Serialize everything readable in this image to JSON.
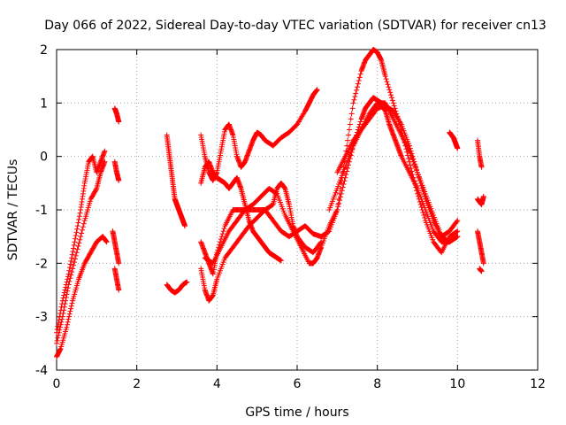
{
  "chart_data": {
    "type": "scatter",
    "title": "Day 066 of 2022, Sidereal Day-to-day VTEC variation (SDTVAR) for receiver cn13",
    "xlabel": "GPS time / hours",
    "ylabel": "SDTVAR / TECUs",
    "xlim": [
      0,
      12
    ],
    "ylim": [
      -4,
      2
    ],
    "x_ticks": [
      0,
      2,
      4,
      6,
      8,
      10,
      12
    ],
    "y_ticks": [
      -4,
      -3,
      -2,
      -1,
      0,
      1,
      2
    ],
    "x_tick_labels": [
      "0",
      "2",
      "4",
      "6",
      "8",
      "10",
      "12"
    ],
    "y_tick_labels": [
      "-4",
      "-3",
      "-2",
      "-1",
      "0",
      "1",
      "2"
    ],
    "grid": true,
    "marker": "+",
    "color": "#ff0000",
    "series": [
      {
        "x": [
          0.0,
          0.15,
          0.3,
          0.45,
          0.6,
          0.7,
          0.8,
          0.9,
          1.0,
          1.1,
          1.2
        ],
        "y": [
          -3.3,
          -2.7,
          -2.2,
          -1.6,
          -1.0,
          -0.5,
          -0.1,
          0.0,
          -0.3,
          -0.1,
          0.1
        ]
      },
      {
        "x": [
          0.0,
          0.15,
          0.3,
          0.5,
          0.7,
          0.85,
          1.0,
          1.1,
          1.2
        ],
        "y": [
          -3.5,
          -3.0,
          -2.4,
          -1.8,
          -1.2,
          -0.8,
          -0.6,
          -0.3,
          -0.1
        ]
      },
      {
        "x": [
          0.0,
          0.1,
          0.25,
          0.4,
          0.55,
          0.7,
          0.85,
          1.0,
          1.15,
          1.25
        ],
        "y": [
          -3.75,
          -3.6,
          -3.2,
          -2.7,
          -2.3,
          -2.0,
          -1.8,
          -1.6,
          -1.5,
          -1.6
        ]
      },
      {
        "x": [
          1.45,
          1.5,
          1.55
        ],
        "y": [
          0.9,
          0.8,
          0.65
        ]
      },
      {
        "x": [
          1.45,
          1.5,
          1.55
        ],
        "y": [
          -0.1,
          -0.3,
          -0.45
        ]
      },
      {
        "x": [
          1.4,
          1.45,
          1.5,
          1.55
        ],
        "y": [
          -1.4,
          -1.6,
          -1.8,
          -2.0
        ]
      },
      {
        "x": [
          1.45,
          1.5,
          1.55
        ],
        "y": [
          -2.1,
          -2.3,
          -2.5
        ]
      },
      {
        "x": [
          2.75,
          2.8,
          2.85,
          2.9,
          2.95,
          3.0,
          3.05,
          3.1,
          3.15,
          3.2
        ],
        "y": [
          0.4,
          0.1,
          -0.2,
          -0.5,
          -0.8,
          -0.9,
          -1.0,
          -1.1,
          -1.2,
          -1.3
        ]
      },
      {
        "x": [
          2.75,
          2.85,
          2.95,
          3.05,
          3.15,
          3.25
        ],
        "y": [
          -2.4,
          -2.5,
          -2.55,
          -2.5,
          -2.4,
          -2.35
        ]
      },
      {
        "x": [
          3.6,
          3.7,
          3.8,
          3.9,
          4.0,
          4.1,
          4.2,
          4.3,
          4.4,
          4.5,
          4.6,
          4.7,
          4.8,
          4.9,
          5.0,
          5.1,
          5.2,
          5.4,
          5.6,
          5.8,
          6.0,
          6.2,
          6.3,
          6.4,
          6.5
        ],
        "y": [
          0.4,
          0.0,
          -0.3,
          -0.45,
          -0.3,
          0.1,
          0.5,
          0.6,
          0.4,
          0.0,
          -0.2,
          -0.1,
          0.1,
          0.3,
          0.45,
          0.4,
          0.3,
          0.2,
          0.35,
          0.45,
          0.6,
          0.85,
          1.0,
          1.15,
          1.25
        ]
      },
      {
        "x": [
          3.6,
          3.7,
          3.8,
          3.9,
          4.0,
          4.1,
          4.2,
          4.3,
          4.4,
          4.5,
          4.6,
          4.7,
          4.8,
          4.9,
          5.0,
          5.1,
          5.2,
          5.3,
          5.4,
          5.5,
          5.6
        ],
        "y": [
          -0.5,
          -0.2,
          -0.1,
          -0.3,
          -0.4,
          -0.45,
          -0.5,
          -0.6,
          -0.5,
          -0.4,
          -0.6,
          -0.9,
          -1.2,
          -1.4,
          -1.5,
          -1.6,
          -1.7,
          -1.8,
          -1.85,
          -1.9,
          -1.95
        ]
      },
      {
        "x": [
          3.6,
          3.7,
          3.8,
          3.9,
          4.0,
          4.2,
          4.4,
          4.6,
          4.8,
          5.0,
          5.2,
          5.4,
          5.6,
          5.8,
          6.0,
          6.2,
          6.4,
          6.6
        ],
        "y": [
          -1.6,
          -1.8,
          -2.0,
          -2.2,
          -1.8,
          -1.3,
          -1.0,
          -1.0,
          -1.0,
          -1.0,
          -1.0,
          -1.2,
          -1.4,
          -1.5,
          -1.4,
          -1.3,
          -1.45,
          -1.5
        ]
      },
      {
        "x": [
          3.6,
          3.7,
          3.8,
          3.9,
          4.0,
          4.2,
          4.4,
          4.6,
          4.8,
          5.0,
          5.2,
          5.4,
          5.5,
          5.6,
          5.7,
          5.8,
          5.9,
          6.0,
          6.2,
          6.4,
          6.6
        ],
        "y": [
          -2.1,
          -2.5,
          -2.7,
          -2.6,
          -2.3,
          -1.9,
          -1.7,
          -1.5,
          -1.3,
          -1.15,
          -1.0,
          -0.9,
          -0.6,
          -0.5,
          -0.6,
          -0.9,
          -1.3,
          -1.5,
          -1.7,
          -1.8,
          -1.6
        ]
      },
      {
        "x": [
          3.7,
          3.9,
          4.1,
          4.3,
          4.5,
          4.7,
          4.9,
          5.1,
          5.3,
          5.5,
          5.7,
          5.9,
          6.1,
          6.3,
          6.4,
          6.5,
          6.6,
          6.8,
          7.0,
          7.2,
          7.4,
          7.6,
          7.7,
          7.8,
          7.9,
          8.0,
          8.1,
          8.2,
          8.4,
          8.6,
          8.8,
          9.0,
          9.2,
          9.4,
          9.6,
          9.8,
          10.0
        ],
        "y": [
          -1.9,
          -2.0,
          -1.7,
          -1.4,
          -1.2,
          -1.0,
          -0.9,
          -0.75,
          -0.6,
          -0.7,
          -1.1,
          -1.4,
          -1.7,
          -2.0,
          -2.0,
          -1.9,
          -1.7,
          -1.3,
          -1.0,
          0.0,
          1.0,
          1.6,
          1.8,
          1.9,
          2.0,
          1.95,
          1.8,
          1.5,
          1.0,
          0.5,
          -0.1,
          -0.7,
          -1.2,
          -1.6,
          -1.8,
          -1.5,
          -1.4
        ]
      },
      {
        "x": [
          6.6,
          6.8,
          7.0,
          7.2,
          7.4,
          7.6,
          7.7,
          7.8,
          7.9,
          8.0,
          8.1,
          8.2,
          8.3,
          8.4,
          8.5,
          8.6,
          8.8,
          9.0,
          9.2,
          9.4,
          9.6,
          9.8,
          10.0
        ],
        "y": [
          -1.5,
          -1.4,
          -1.0,
          -0.4,
          0.2,
          0.7,
          0.9,
          1.0,
          1.1,
          1.05,
          1.0,
          0.85,
          0.6,
          0.4,
          0.2,
          0.0,
          -0.3,
          -0.6,
          -1.0,
          -1.4,
          -1.6,
          -1.6,
          -1.5
        ]
      },
      {
        "x": [
          6.8,
          7.0,
          7.2,
          7.4,
          7.6,
          7.8,
          8.0,
          8.2,
          8.4,
          8.6,
          8.8,
          9.0,
          9.2,
          9.4,
          9.6,
          9.8,
          10.0
        ],
        "y": [
          -1.0,
          -0.6,
          -0.2,
          0.2,
          0.5,
          0.8,
          1.0,
          1.0,
          0.7,
          0.4,
          0.1,
          -0.3,
          -0.7,
          -1.1,
          -1.5,
          -1.6,
          -1.5
        ]
      },
      {
        "x": [
          7.0,
          7.2,
          7.4,
          7.6,
          7.8,
          8.0,
          8.2,
          8.4,
          8.6,
          8.8,
          9.0,
          9.2,
          9.4,
          9.6,
          9.8,
          10.0
        ],
        "y": [
          -0.3,
          0.0,
          0.3,
          0.5,
          0.7,
          0.9,
          0.95,
          0.85,
          0.6,
          0.2,
          -0.3,
          -0.8,
          -1.2,
          -1.5,
          -1.4,
          -1.2
        ]
      },
      {
        "x": [
          9.8,
          9.85,
          9.9,
          9.95,
          10.0
        ],
        "y": [
          0.45,
          0.4,
          0.35,
          0.25,
          0.15
        ]
      },
      {
        "x": [
          10.5,
          10.55,
          10.6
        ],
        "y": [
          0.3,
          0.0,
          -0.2
        ]
      },
      {
        "x": [
          10.5,
          10.55,
          10.6,
          10.65
        ],
        "y": [
          -0.8,
          -0.85,
          -0.9,
          -0.75
        ]
      },
      {
        "x": [
          10.5,
          10.55,
          10.6,
          10.65
        ],
        "y": [
          -1.4,
          -1.6,
          -1.8,
          -2.0
        ]
      },
      {
        "x": [
          10.55,
          10.6
        ],
        "y": [
          -2.1,
          -2.15
        ]
      }
    ]
  }
}
